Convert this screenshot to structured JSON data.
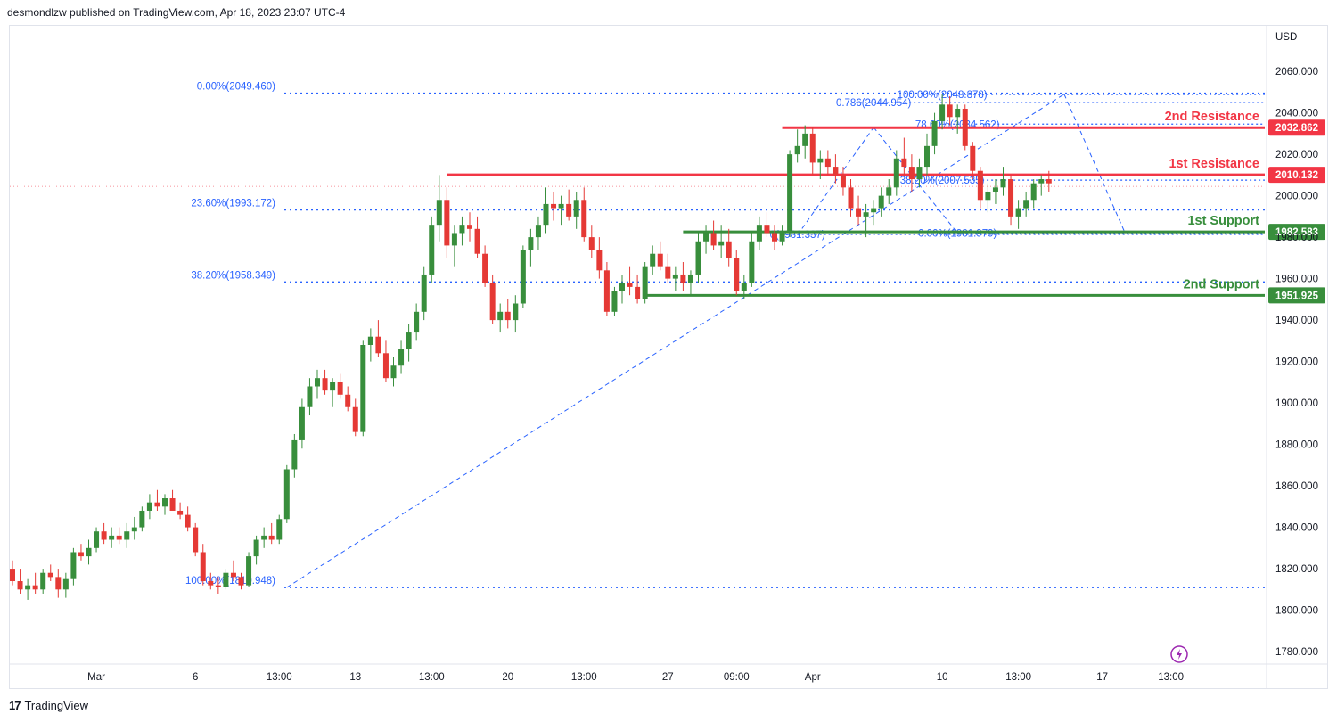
{
  "header": {
    "text": "desmondlzw published on TradingView.com, Apr 18, 2023 23:07 UTC-4"
  },
  "footer": {
    "logo": "17",
    "brand": "TradingView"
  },
  "colors": {
    "up": "#388e3c",
    "down": "#e53935",
    "resistance": "#f23645",
    "support": "#388e3c",
    "fib": "#2962ff",
    "current_price_line": "#f23645"
  },
  "chart_data": {
    "type": "candlestick",
    "currency": "USD",
    "y_ticks": [
      "2060.000",
      "2040.000",
      "2020.000",
      "2000.000",
      "1980.000",
      "1960.000",
      "1940.000",
      "1920.000",
      "1900.000",
      "1880.000",
      "1860.000",
      "1840.000",
      "1820.000",
      "1800.000",
      "1780.000"
    ],
    "ylim": [
      1774,
      2082
    ],
    "x_ticks": [
      {
        "label": "Mar",
        "bar": 11
      },
      {
        "label": "6",
        "bar": 24
      },
      {
        "label": "13:00",
        "bar": 35
      },
      {
        "label": "13",
        "bar": 45
      },
      {
        "label": "13:00",
        "bar": 55
      },
      {
        "label": "20",
        "bar": 65
      },
      {
        "label": "13:00",
        "bar": 75
      },
      {
        "label": "27",
        "bar": 86
      },
      {
        "label": "09:00",
        "bar": 95
      },
      {
        "label": "Apr",
        "bar": 105
      },
      {
        "label": "10",
        "bar": 122
      },
      {
        "label": "13:00",
        "bar": 132
      },
      {
        "label": "17",
        "bar": 143
      },
      {
        "label": "13:00",
        "bar": 152
      }
    ],
    "candles": [
      [
        1820,
        1824,
        1812,
        1814
      ],
      [
        1814,
        1820,
        1808,
        1810
      ],
      [
        1810,
        1815,
        1805,
        1812
      ],
      [
        1812,
        1818,
        1808,
        1810
      ],
      [
        1810,
        1820,
        1808,
        1818
      ],
      [
        1818,
        1822,
        1814,
        1816
      ],
      [
        1816,
        1820,
        1806,
        1810
      ],
      [
        1810,
        1818,
        1806,
        1815
      ],
      [
        1815,
        1830,
        1812,
        1828
      ],
      [
        1828,
        1832,
        1824,
        1826
      ],
      [
        1826,
        1834,
        1822,
        1830
      ],
      [
        1830,
        1840,
        1828,
        1838
      ],
      [
        1838,
        1842,
        1832,
        1834
      ],
      [
        1834,
        1840,
        1830,
        1836
      ],
      [
        1836,
        1840,
        1832,
        1834
      ],
      [
        1834,
        1842,
        1830,
        1838
      ],
      [
        1838,
        1845,
        1834,
        1840
      ],
      [
        1840,
        1850,
        1838,
        1848
      ],
      [
        1848,
        1856,
        1844,
        1852
      ],
      [
        1852,
        1858,
        1848,
        1850
      ],
      [
        1850,
        1856,
        1846,
        1854
      ],
      [
        1854,
        1858,
        1850,
        1848
      ],
      [
        1848,
        1852,
        1844,
        1846
      ],
      [
        1846,
        1850,
        1838,
        1840
      ],
      [
        1840,
        1842,
        1826,
        1828
      ],
      [
        1828,
        1832,
        1812,
        1814
      ],
      [
        1814,
        1818,
        1810,
        1812
      ],
      [
        1812,
        1816,
        1808,
        1811
      ],
      [
        1811,
        1820,
        1810,
        1818
      ],
      [
        1818,
        1824,
        1814,
        1816
      ],
      [
        1816,
        1818,
        1810,
        1812
      ],
      [
        1812,
        1828,
        1811,
        1826
      ],
      [
        1826,
        1836,
        1822,
        1834
      ],
      [
        1834,
        1840,
        1830,
        1836
      ],
      [
        1836,
        1842,
        1832,
        1834
      ],
      [
        1834,
        1846,
        1832,
        1844
      ],
      [
        1844,
        1870,
        1842,
        1868
      ],
      [
        1868,
        1885,
        1864,
        1882
      ],
      [
        1882,
        1902,
        1878,
        1898
      ],
      [
        1898,
        1912,
        1894,
        1908
      ],
      [
        1908,
        1916,
        1902,
        1912
      ],
      [
        1912,
        1916,
        1904,
        1906
      ],
      [
        1906,
        1912,
        1898,
        1910
      ],
      [
        1910,
        1914,
        1902,
        1904
      ],
      [
        1904,
        1908,
        1896,
        1898
      ],
      [
        1898,
        1902,
        1884,
        1886
      ],
      [
        1886,
        1930,
        1884,
        1928
      ],
      [
        1928,
        1936,
        1920,
        1932
      ],
      [
        1932,
        1940,
        1922,
        1924
      ],
      [
        1924,
        1930,
        1910,
        1912
      ],
      [
        1912,
        1922,
        1908,
        1918
      ],
      [
        1918,
        1930,
        1914,
        1926
      ],
      [
        1926,
        1938,
        1920,
        1934
      ],
      [
        1934,
        1948,
        1930,
        1944
      ],
      [
        1944,
        1966,
        1940,
        1962
      ],
      [
        1962,
        1990,
        1958,
        1986
      ],
      [
        1986,
        2010,
        1978,
        1998
      ],
      [
        1998,
        2004,
        1970,
        1976
      ],
      [
        1976,
        1986,
        1966,
        1982
      ],
      [
        1982,
        1990,
        1976,
        1986
      ],
      [
        1986,
        1992,
        1978,
        1984
      ],
      [
        1984,
        1990,
        1970,
        1972
      ],
      [
        1972,
        1976,
        1956,
        1958
      ],
      [
        1958,
        1962,
        1938,
        1940
      ],
      [
        1940,
        1948,
        1934,
        1944
      ],
      [
        1944,
        1950,
        1936,
        1940
      ],
      [
        1940,
        1952,
        1934,
        1948
      ],
      [
        1948,
        1976,
        1946,
        1974
      ],
      [
        1974,
        1984,
        1966,
        1980
      ],
      [
        1980,
        1990,
        1974,
        1986
      ],
      [
        1986,
        2004,
        1982,
        1996
      ],
      [
        1996,
        2002,
        1988,
        1994
      ],
      [
        1994,
        2000,
        1986,
        1996
      ],
      [
        1996,
        2003,
        1988,
        1990
      ],
      [
        1990,
        2002,
        1984,
        1998
      ],
      [
        1998,
        2004,
        1978,
        1980
      ],
      [
        1980,
        1986,
        1970,
        1974
      ],
      [
        1974,
        1980,
        1960,
        1964
      ],
      [
        1964,
        1968,
        1942,
        1944
      ],
      [
        1944,
        1956,
        1942,
        1954
      ],
      [
        1954,
        1962,
        1948,
        1958
      ],
      [
        1958,
        1966,
        1952,
        1956
      ],
      [
        1956,
        1962,
        1948,
        1950
      ],
      [
        1950,
        1968,
        1948,
        1966
      ],
      [
        1966,
        1976,
        1962,
        1972
      ],
      [
        1972,
        1978,
        1964,
        1966
      ],
      [
        1966,
        1972,
        1958,
        1960
      ],
      [
        1960,
        1966,
        1954,
        1962
      ],
      [
        1962,
        1968,
        1954,
        1958
      ],
      [
        1958,
        1964,
        1952,
        1962
      ],
      [
        1962,
        1982,
        1958,
        1978
      ],
      [
        1978,
        1986,
        1972,
        1982
      ],
      [
        1982,
        1988,
        1974,
        1976
      ],
      [
        1976,
        1986,
        1970,
        1978
      ],
      [
        1978,
        1984,
        1966,
        1970
      ],
      [
        1970,
        1974,
        1952,
        1954
      ],
      [
        1954,
        1962,
        1950,
        1958
      ],
      [
        1958,
        1982,
        1956,
        1978
      ],
      [
        1978,
        1990,
        1974,
        1986
      ],
      [
        1986,
        1992,
        1980,
        1982
      ],
      [
        1982,
        1986,
        1974,
        1978
      ],
      [
        1978,
        1986,
        1976,
        1983
      ],
      [
        1983,
        2022,
        1980,
        2020
      ],
      [
        2020,
        2032,
        2016,
        2024
      ],
      [
        2024,
        2034,
        2018,
        2030
      ],
      [
        2030,
        2033,
        2010,
        2016
      ],
      [
        2016,
        2022,
        2008,
        2018
      ],
      [
        2018,
        2022,
        2010,
        2014
      ],
      [
        2014,
        2020,
        2006,
        2010
      ],
      [
        2010,
        2014,
        2000,
        2004
      ],
      [
        2004,
        2008,
        1990,
        1994
      ],
      [
        1994,
        2000,
        1986,
        1990
      ],
      [
        1990,
        1996,
        1980,
        1992
      ],
      [
        1992,
        1998,
        1986,
        1994
      ],
      [
        1994,
        2004,
        1990,
        2000
      ],
      [
        2000,
        2008,
        1996,
        2004
      ],
      [
        2004,
        2022,
        2000,
        2018
      ],
      [
        2018,
        2028,
        2010,
        2014
      ],
      [
        2014,
        2020,
        2002,
        2008
      ],
      [
        2008,
        2018,
        2004,
        2014
      ],
      [
        2014,
        2030,
        2010,
        2024
      ],
      [
        2024,
        2040,
        2020,
        2036
      ],
      [
        2036,
        2049,
        2032,
        2044
      ],
      [
        2044,
        2048,
        2034,
        2038
      ],
      [
        2038,
        2044,
        2030,
        2042
      ],
      [
        2042,
        2044,
        2022,
        2024
      ],
      [
        2024,
        2026,
        2008,
        2012
      ],
      [
        2012,
        2014,
        1994,
        1998
      ],
      [
        1998,
        2006,
        1992,
        2002
      ],
      [
        2002,
        2008,
        1996,
        2004
      ],
      [
        2004,
        2014,
        2000,
        2008
      ],
      [
        2008,
        2010,
        1986,
        1990
      ],
      [
        1990,
        1998,
        1984,
        1994
      ],
      [
        1994,
        2002,
        1990,
        1998
      ],
      [
        1998,
        2008,
        1994,
        2006
      ],
      [
        2006,
        2010,
        2000,
        2008
      ],
      [
        2008,
        2012,
        2002,
        2006
      ]
    ],
    "horizontal_levels": [
      {
        "name": "2nd Resistance",
        "price": 2032.862,
        "tag": "2032.862",
        "kind": "resistance",
        "start_bar": 101
      },
      {
        "name": "1st Resistance",
        "price": 2010.132,
        "tag": "2010.132",
        "kind": "resistance",
        "start_bar": 57
      },
      {
        "name": "1st Support",
        "price": 1982.583,
        "tag": "1982.583",
        "kind": "support",
        "start_bar": 88
      },
      {
        "name": "2nd Support",
        "price": 1951.925,
        "tag": "1951.925",
        "kind": "support",
        "start_bar": 83
      }
    ],
    "fib_major": [
      {
        "label": "0.00%(2049.460)",
        "price": 2049.46
      },
      {
        "label": "23.60%(1993.172)",
        "price": 1993.172
      },
      {
        "label": "38.20%(1958.349)",
        "price": 1958.349
      },
      {
        "label": "100.00%(1810.948)",
        "price": 1810.948
      }
    ],
    "fib_minor": [
      {
        "label": "0.786(2044.954)",
        "price": 2044.954,
        "bar": 113
      },
      {
        "label": "100.00%(2048.878)",
        "price": 2048.878,
        "bar": 122
      },
      {
        "label": "78.60%(2034.562)",
        "price": 2034.562,
        "bar": 124
      },
      {
        "label": "38.20%(2007.535)",
        "price": 2007.535,
        "bar": 122
      },
      {
        "label": "0(1981.337)",
        "price": 1981.337,
        "bar": 103
      },
      {
        "label": "0.00%(1981.979)",
        "price": 1981.979,
        "bar": 124
      }
    ],
    "current_price": 2004.5
  }
}
